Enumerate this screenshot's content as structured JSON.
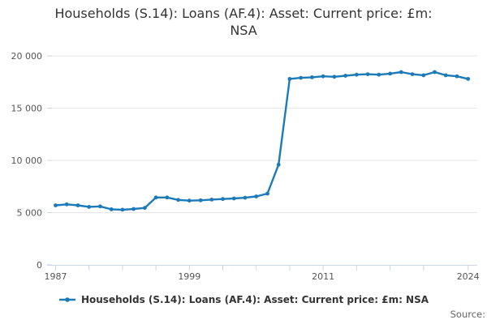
{
  "title": {
    "full": "Households (S.14): Loans (AF.4): Asset: Current price: £m: NSA",
    "line1": "Households (S.14): Loans (AF.4): Asset: Current price: £m:",
    "line2": "NSA"
  },
  "legend": {
    "label": "Households (S.14): Loans (AF.4): Asset: Current price: £m: NSA"
  },
  "footer": {
    "source_label": "Source:"
  },
  "colors": {
    "line": "#1d7ab9",
    "grid": "#e6e6e6",
    "axis": "#ccd6eb",
    "title_text": "#333333",
    "tick_text": "#555555",
    "legend_text": "#333333",
    "source_text": "#666666",
    "background": "#ffffff"
  },
  "chart_data": {
    "type": "line",
    "title": "Households (S.14): Loans (AF.4): Asset: Current price: £m: NSA",
    "xlabel": "",
    "ylabel": "",
    "grid": "horizontal",
    "legend_position": "bottom",
    "marker": "circle",
    "xlim": [
      1987,
      2024
    ],
    "ylim": [
      0,
      20000
    ],
    "x": [
      1987,
      1988,
      1989,
      1990,
      1991,
      1992,
      1993,
      1994,
      1995,
      1996,
      1997,
      1998,
      1999,
      2000,
      2001,
      2002,
      2003,
      2004,
      2005,
      2006,
      2007,
      2008,
      2009,
      2010,
      2011,
      2012,
      2013,
      2014,
      2015,
      2016,
      2017,
      2018,
      2019,
      2020,
      2021,
      2022,
      2023,
      2024
    ],
    "series": [
      {
        "name": "Households (S.14): Loans (AF.4): Asset: Current price: £m: NSA",
        "values": [
          5700,
          5790,
          5700,
          5550,
          5600,
          5320,
          5280,
          5350,
          5450,
          6450,
          6450,
          6220,
          6150,
          6180,
          6250,
          6300,
          6360,
          6430,
          6550,
          6820,
          9590,
          17800,
          17900,
          17950,
          18050,
          18000,
          18100,
          18200,
          18250,
          18200,
          18300,
          18450,
          18250,
          18150,
          18450,
          18150,
          18050,
          17800
        ]
      }
    ],
    "y_ticks": {
      "values": [
        0,
        5000,
        10000,
        15000,
        20000
      ],
      "labels": [
        "0",
        "5 000",
        "10 000",
        "15 000",
        "20 000"
      ]
    },
    "x_ticks": {
      "tick_years": [
        1987,
        1990,
        1993,
        1996,
        1999,
        2002,
        2005,
        2008,
        2011,
        2014,
        2017,
        2020,
        2024
      ],
      "labeled_years": [
        1987,
        1999,
        2011,
        2024
      ]
    }
  }
}
